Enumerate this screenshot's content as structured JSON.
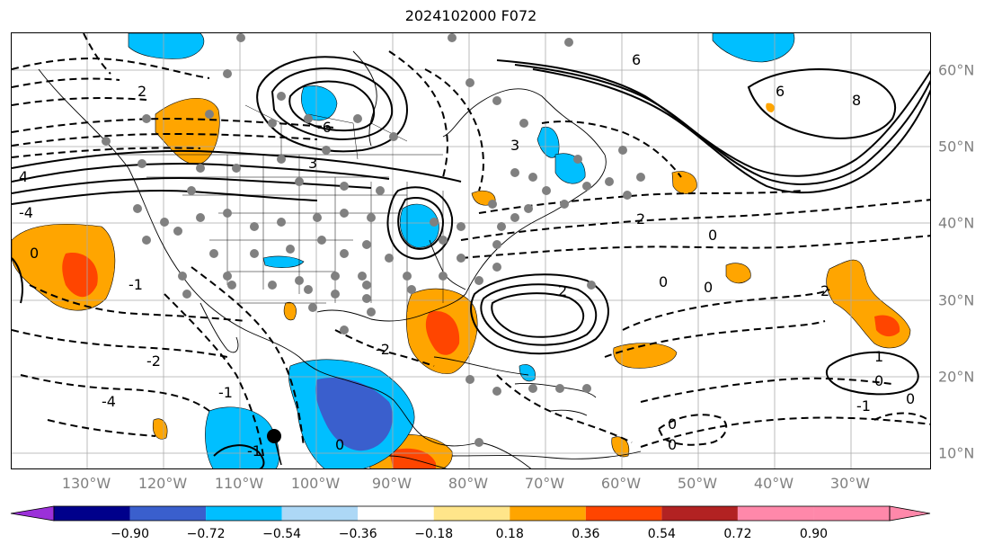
{
  "title": "2024102000 F072",
  "lon_labels": [
    "130°W",
    "120°W",
    "110°W",
    "100°W",
    "90°W",
    "80°W",
    "70°W",
    "60°W",
    "50°W",
    "40°W",
    "30°W"
  ],
  "lat_labels": [
    "60°N",
    "50°N",
    "40°N",
    "30°N",
    "20°N",
    "10°N"
  ],
  "colorbar": {
    "colors": [
      "#9b30d9",
      "#00008b",
      "#3a5fcd",
      "#00bfff",
      "#add8f6",
      "#ffffff",
      "#ffe58a",
      "#ffa500",
      "#ff4500",
      "#b22222",
      "#ff88aa",
      "#ff88aa"
    ],
    "tick_labels": [
      "−0.90",
      "−0.72",
      "−0.54",
      "−0.36",
      "−0.18",
      "0.18",
      "0.36",
      "0.54",
      "0.72",
      "0.90"
    ]
  },
  "contour_labels": [
    "-6",
    "-4",
    "-2",
    "-1",
    "0",
    "1",
    "2",
    "3",
    "4",
    "6",
    "8"
  ]
}
